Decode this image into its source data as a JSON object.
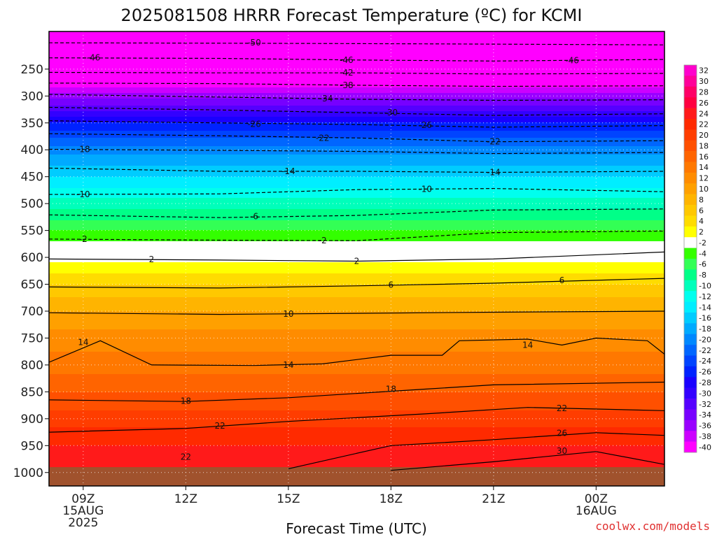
{
  "chart_data": {
    "type": "heatmap",
    "title": "2025081508 HRRR Forecast Temperature (ºC) for KCMI",
    "xlabel": "Forecast Time (UTC)",
    "ylabel": "",
    "y_axis": {
      "scale": "pressure (inverted)",
      "ticks": [
        250,
        300,
        350,
        400,
        450,
        500,
        550,
        600,
        650,
        700,
        750,
        800,
        850,
        900,
        950,
        1000
      ],
      "range": [
        1025,
        180
      ]
    },
    "x_axis": {
      "ticks": [
        {
          "hour": 9,
          "label": "09Z",
          "label2": "15AUG",
          "label3": "2025"
        },
        {
          "hour": 12,
          "label": "12Z",
          "label2": "",
          "label3": ""
        },
        {
          "hour": 15,
          "label": "15Z",
          "label2": "",
          "label3": ""
        },
        {
          "hour": 18,
          "label": "18Z",
          "label2": "",
          "label3": ""
        },
        {
          "hour": 21,
          "label": "21Z",
          "label2": "",
          "label3": ""
        },
        {
          "hour": 24,
          "label": "00Z",
          "label2": "16AUG",
          "label3": ""
        }
      ],
      "range": [
        8,
        26
      ]
    },
    "grid": true,
    "colorbar": {
      "placement": "right",
      "levels": [
        32,
        30,
        28,
        26,
        24,
        22,
        20,
        18,
        16,
        14,
        12,
        10,
        8,
        6,
        4,
        2,
        -2,
        -4,
        -6,
        -8,
        -10,
        -12,
        -14,
        -16,
        -18,
        -20,
        -22,
        -24,
        -26,
        -28,
        -30,
        -32,
        -34,
        -36,
        -38,
        -40
      ],
      "colors": [
        "#ff00cc",
        "#ff0099",
        "#ff0066",
        "#ff0040",
        "#ff1a1a",
        "#ff2a00",
        "#ff3d00",
        "#ff5000",
        "#ff6400",
        "#ff7800",
        "#ff8c00",
        "#ffa000",
        "#ffb400",
        "#ffc800",
        "#ffdc00",
        "#ffff00",
        "#ffffff",
        "#33ff00",
        "#33ff55",
        "#00ff88",
        "#00ffbb",
        "#00ffee",
        "#00eeff",
        "#00ccff",
        "#00aaff",
        "#0088ff",
        "#0066ff",
        "#0044ff",
        "#0022ff",
        "#1a00ff",
        "#3300ff",
        "#5500ff",
        "#7700ff",
        "#9900ff",
        "#cc00ff",
        "#ff00ff"
      ]
    },
    "surface_color": "#a0522d",
    "temperature_profile": [
      {
        "p": 1000,
        "t": 26
      },
      {
        "p": 950,
        "t": 24
      },
      {
        "p": 900,
        "t": 21
      },
      {
        "p": 850,
        "t": 18
      },
      {
        "p": 800,
        "t": 15
      },
      {
        "p": 750,
        "t": 13
      },
      {
        "p": 700,
        "t": 10
      },
      {
        "p": 650,
        "t": 6
      },
      {
        "p": 600,
        "t": 1
      },
      {
        "p": 550,
        "t": -4
      },
      {
        "p": 500,
        "t": -9
      },
      {
        "p": 450,
        "t": -14
      },
      {
        "p": 400,
        "t": -19
      },
      {
        "p": 350,
        "t": -26
      },
      {
        "p": 300,
        "t": -35
      },
      {
        "p": 250,
        "t": -44
      },
      {
        "p": 200,
        "t": -52
      }
    ],
    "contours": [
      {
        "t": -50,
        "dashed": true,
        "pts": [
          [
            8,
            201
          ],
          [
            14,
            202
          ],
          [
            19,
            203
          ],
          [
            26,
            205
          ]
        ]
      },
      {
        "t": -46,
        "dashed": true,
        "pts": [
          [
            8,
            229
          ],
          [
            13,
            230
          ],
          [
            17,
            233
          ],
          [
            21,
            235
          ],
          [
            26,
            232
          ]
        ]
      },
      {
        "t": -42,
        "dashed": true,
        "pts": [
          [
            8,
            256
          ],
          [
            13,
            257
          ],
          [
            17,
            257
          ],
          [
            21,
            259
          ],
          [
            26,
            258
          ]
        ]
      },
      {
        "t": -38,
        "dashed": true,
        "pts": [
          [
            8,
            276
          ],
          [
            13,
            277
          ],
          [
            17,
            280
          ],
          [
            21,
            282
          ],
          [
            26,
            281
          ]
        ]
      },
      {
        "t": -34,
        "dashed": true,
        "pts": [
          [
            8,
            297
          ],
          [
            13,
            302
          ],
          [
            17,
            306
          ],
          [
            21,
            308
          ],
          [
            26,
            307
          ]
        ]
      },
      {
        "t": -30,
        "dashed": true,
        "pts": [
          [
            8,
            321
          ],
          [
            13,
            326
          ],
          [
            17,
            331
          ],
          [
            21,
            336
          ],
          [
            26,
            333
          ]
        ]
      },
      {
        "t": -26,
        "dashed": true,
        "pts": [
          [
            8,
            346
          ],
          [
            13,
            350
          ],
          [
            17,
            353
          ],
          [
            21,
            358
          ],
          [
            26,
            355
          ]
        ]
      },
      {
        "t": -22,
        "dashed": true,
        "pts": [
          [
            8,
            370
          ],
          [
            13,
            374
          ],
          [
            17,
            378
          ],
          [
            21,
            385
          ],
          [
            26,
            383
          ]
        ]
      },
      {
        "t": -18,
        "dashed": true,
        "pts": [
          [
            8,
            399
          ],
          [
            13,
            401
          ],
          [
            17,
            403
          ],
          [
            21,
            407
          ],
          [
            26,
            405
          ]
        ]
      },
      {
        "t": -14,
        "dashed": true,
        "pts": [
          [
            8,
            434
          ],
          [
            13,
            440
          ],
          [
            17,
            440
          ],
          [
            21,
            442
          ],
          [
            26,
            440
          ]
        ]
      },
      {
        "t": -10,
        "dashed": true,
        "pts": [
          [
            8,
            483
          ],
          [
            13,
            482
          ],
          [
            17,
            474
          ],
          [
            21,
            472
          ],
          [
            26,
            478
          ]
        ]
      },
      {
        "t": -6,
        "dashed": true,
        "pts": [
          [
            8,
            521
          ],
          [
            13,
            526
          ],
          [
            17,
            522
          ],
          [
            21,
            512
          ],
          [
            26,
            510
          ]
        ]
      },
      {
        "t": -2,
        "dashed": true,
        "pts": [
          [
            8,
            566
          ],
          [
            13,
            568
          ],
          [
            17,
            569
          ],
          [
            21,
            554
          ],
          [
            26,
            551
          ]
        ]
      },
      {
        "t": 2,
        "dashed": false,
        "pts": [
          [
            8,
            603
          ],
          [
            13,
            605
          ],
          [
            17,
            607
          ],
          [
            21,
            603
          ],
          [
            26,
            590
          ]
        ]
      },
      {
        "t": 6,
        "dashed": false,
        "pts": [
          [
            8,
            655
          ],
          [
            13,
            657
          ],
          [
            17,
            653
          ],
          [
            21,
            648
          ],
          [
            26,
            639
          ]
        ]
      },
      {
        "t": 10,
        "dashed": false,
        "pts": [
          [
            8,
            703
          ],
          [
            13,
            706
          ],
          [
            17,
            704
          ],
          [
            21,
            702
          ],
          [
            26,
            700
          ]
        ]
      },
      {
        "t": 14,
        "dashed": false,
        "pts": [
          [
            8,
            795
          ],
          [
            9.5,
            755
          ],
          [
            11,
            800
          ],
          [
            14,
            801
          ],
          [
            16,
            798
          ],
          [
            18,
            782
          ],
          [
            19.5,
            782
          ],
          [
            20,
            755
          ],
          [
            22,
            752
          ],
          [
            23,
            763
          ],
          [
            24,
            750
          ],
          [
            25.5,
            755
          ],
          [
            26,
            780
          ]
        ]
      },
      {
        "t": 18,
        "dashed": false,
        "pts": [
          [
            8,
            865
          ],
          [
            12,
            868
          ],
          [
            15,
            861
          ],
          [
            19,
            845
          ],
          [
            21,
            837
          ],
          [
            26,
            832
          ]
        ]
      },
      {
        "t": 22,
        "dashed": false,
        "pts": [
          [
            8,
            925
          ],
          [
            12,
            918
          ],
          [
            15,
            905
          ],
          [
            19,
            891
          ],
          [
            22,
            879
          ],
          [
            26,
            885
          ]
        ]
      },
      {
        "t": 26,
        "dashed": false,
        "pts": [
          [
            15,
            993
          ],
          [
            18,
            950
          ],
          [
            21,
            939
          ],
          [
            24,
            926
          ],
          [
            26,
            931
          ]
        ]
      },
      {
        "t": 30,
        "dashed": false,
        "pts": [
          [
            18,
            996
          ],
          [
            21,
            980
          ],
          [
            24,
            961
          ],
          [
            26,
            985
          ]
        ]
      }
    ],
    "contour_labels": [
      {
        "text": "-50",
        "h": 14,
        "p": 201
      },
      {
        "text": "-46",
        "h": 9.3,
        "p": 229
      },
      {
        "text": "-46",
        "h": 16.7,
        "p": 233
      },
      {
        "text": "-46",
        "h": 23.3,
        "p": 234
      },
      {
        "text": "-42",
        "h": 16.7,
        "p": 257
      },
      {
        "text": "-38",
        "h": 16.7,
        "p": 280
      },
      {
        "text": "-34",
        "h": 16.1,
        "p": 305
      },
      {
        "text": "-30",
        "h": 18,
        "p": 331
      },
      {
        "text": "-26",
        "h": 14,
        "p": 352
      },
      {
        "text": "-26",
        "h": 19,
        "p": 354
      },
      {
        "text": "-22",
        "h": 16,
        "p": 378
      },
      {
        "text": "-22",
        "h": 21,
        "p": 385
      },
      {
        "text": "-18",
        "h": 9,
        "p": 399
      },
      {
        "text": "-14",
        "h": 15,
        "p": 440
      },
      {
        "text": "-14",
        "h": 21,
        "p": 442
      },
      {
        "text": "-10",
        "h": 9,
        "p": 483
      },
      {
        "text": "-10",
        "h": 19,
        "p": 473
      },
      {
        "text": "-6",
        "h": 14,
        "p": 524
      },
      {
        "text": "-2",
        "h": 9,
        "p": 566
      },
      {
        "text": "-2",
        "h": 16,
        "p": 569
      },
      {
        "text": "2",
        "h": 11,
        "p": 604
      },
      {
        "text": "2",
        "h": 17,
        "p": 607
      },
      {
        "text": "6",
        "h": 18,
        "p": 651
      },
      {
        "text": "6",
        "h": 23,
        "p": 643
      },
      {
        "text": "10",
        "h": 15,
        "p": 705
      },
      {
        "text": "14",
        "h": 9,
        "p": 758
      },
      {
        "text": "14",
        "h": 15,
        "p": 800
      },
      {
        "text": "14",
        "h": 22,
        "p": 763
      },
      {
        "text": "18",
        "h": 12,
        "p": 867
      },
      {
        "text": "18",
        "h": 18,
        "p": 845
      },
      {
        "text": "22",
        "h": 13,
        "p": 913
      },
      {
        "text": "22",
        "h": 23,
        "p": 881
      },
      {
        "text": "22",
        "h": 12,
        "p": 971
      },
      {
        "text": "26",
        "h": 23,
        "p": 927
      },
      {
        "text": "30",
        "h": 23,
        "p": 960
      }
    ]
  },
  "credit": "coolwx.com/models"
}
